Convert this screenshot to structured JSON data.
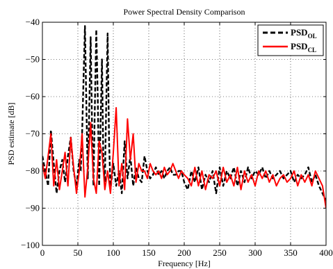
{
  "chart_data": {
    "type": "line",
    "title": "Power Spectral Density Comparison",
    "xlabel": "Frequency [Hz]",
    "ylabel": "PSD estimate  [dB]",
    "xlim": [
      0,
      400
    ],
    "ylim": [
      -100,
      -40
    ],
    "xticks": [
      0,
      50,
      100,
      150,
      200,
      250,
      300,
      350,
      400
    ],
    "yticks": [
      -100,
      -90,
      -80,
      -70,
      -60,
      -50,
      -40
    ],
    "xtick_labels": [
      "0",
      "50",
      "100",
      "150",
      "200",
      "250",
      "300",
      "350",
      "400"
    ],
    "ytick_labels": [
      "−100",
      "−90",
      "−80",
      "−70",
      "−60",
      "−50",
      "−40"
    ],
    "grid": true,
    "legend_position": "top-right",
    "series": [
      {
        "name": "PSD",
        "subscript": "OL",
        "color": "#000000",
        "dash": "dashed",
        "x": [
          0,
          4,
          8,
          12,
          16,
          20,
          24,
          28,
          32,
          36,
          40,
          44,
          48,
          52,
          54,
          56,
          58,
          60,
          62,
          64,
          66,
          68,
          70,
          72,
          74,
          76,
          78,
          80,
          82,
          84,
          86,
          88,
          90,
          92,
          94,
          96,
          100,
          104,
          108,
          112,
          116,
          120,
          124,
          128,
          132,
          136,
          140,
          144,
          148,
          152,
          156,
          160,
          164,
          168,
          172,
          176,
          180,
          184,
          188,
          192,
          196,
          200,
          205,
          210,
          215,
          220,
          225,
          230,
          235,
          240,
          245,
          250,
          255,
          260,
          265,
          270,
          275,
          280,
          285,
          290,
          295,
          300,
          305,
          310,
          315,
          320,
          325,
          330,
          335,
          340,
          345,
          350,
          355,
          360,
          365,
          370,
          375,
          380,
          385,
          390,
          395,
          400
        ],
        "y": [
          -76,
          -80,
          -84,
          -69,
          -78,
          -86,
          -80,
          -77,
          -83,
          -76,
          -71,
          -80,
          -84,
          -77,
          -80,
          -70,
          -55,
          -41,
          -62,
          -82,
          -64,
          -44,
          -68,
          -84,
          -62,
          -42,
          -60,
          -84,
          -68,
          -50,
          -78,
          -83,
          -62,
          -43,
          -72,
          -85,
          -78,
          -84,
          -80,
          -86,
          -72,
          -82,
          -76,
          -84,
          -79,
          -82,
          -83,
          -76,
          -80,
          -82,
          -81,
          -79,
          -81,
          -80,
          -82,
          -80,
          -79,
          -81,
          -81,
          -80,
          -80,
          -83,
          -85,
          -80,
          -83,
          -79,
          -85,
          -81,
          -83,
          -80,
          -86,
          -79,
          -84,
          -80,
          -82,
          -79,
          -84,
          -80,
          -83,
          -79,
          -82,
          -80,
          -81,
          -79,
          -82,
          -80,
          -82,
          -81,
          -80,
          -82,
          -81,
          -80,
          -83,
          -81,
          -82,
          -81,
          -79,
          -83,
          -81,
          -84,
          -86,
          -88
        ]
      },
      {
        "name": "PSD",
        "subscript": "CL",
        "color": "#ff0000",
        "dash": "solid",
        "x": [
          0,
          4,
          8,
          12,
          16,
          20,
          24,
          28,
          32,
          36,
          40,
          44,
          48,
          52,
          56,
          60,
          64,
          68,
          72,
          76,
          80,
          84,
          88,
          92,
          96,
          100,
          104,
          108,
          112,
          116,
          120,
          124,
          128,
          132,
          136,
          140,
          144,
          148,
          152,
          156,
          160,
          164,
          168,
          172,
          176,
          180,
          184,
          188,
          192,
          196,
          200,
          205,
          210,
          215,
          220,
          225,
          230,
          235,
          240,
          245,
          250,
          255,
          260,
          265,
          270,
          275,
          280,
          285,
          290,
          295,
          300,
          305,
          310,
          315,
          320,
          325,
          330,
          335,
          340,
          345,
          350,
          355,
          360,
          365,
          370,
          375,
          380,
          385,
          390,
          395,
          400
        ],
        "y": [
          -78,
          -82,
          -76,
          -70,
          -84,
          -77,
          -85,
          -80,
          -75,
          -84,
          -71,
          -79,
          -86,
          -80,
          -70,
          -87,
          -79,
          -67,
          -82,
          -86,
          -72,
          -75,
          -85,
          -80,
          -86,
          -75,
          -63,
          -84,
          -78,
          -85,
          -66,
          -77,
          -70,
          -83,
          -78,
          -80,
          -80,
          -82,
          -78,
          -80,
          -81,
          -80,
          -82,
          -79,
          -81,
          -80,
          -78,
          -80,
          -82,
          -80,
          -81,
          -82,
          -84,
          -79,
          -84,
          -80,
          -85,
          -81,
          -82,
          -80,
          -84,
          -79,
          -83,
          -81,
          -84,
          -79,
          -85,
          -80,
          -83,
          -81,
          -84,
          -80,
          -82,
          -80,
          -83,
          -81,
          -84,
          -82,
          -81,
          -83,
          -82,
          -80,
          -84,
          -81,
          -83,
          -81,
          -84,
          -80,
          -82,
          -84,
          -90
        ]
      }
    ]
  }
}
